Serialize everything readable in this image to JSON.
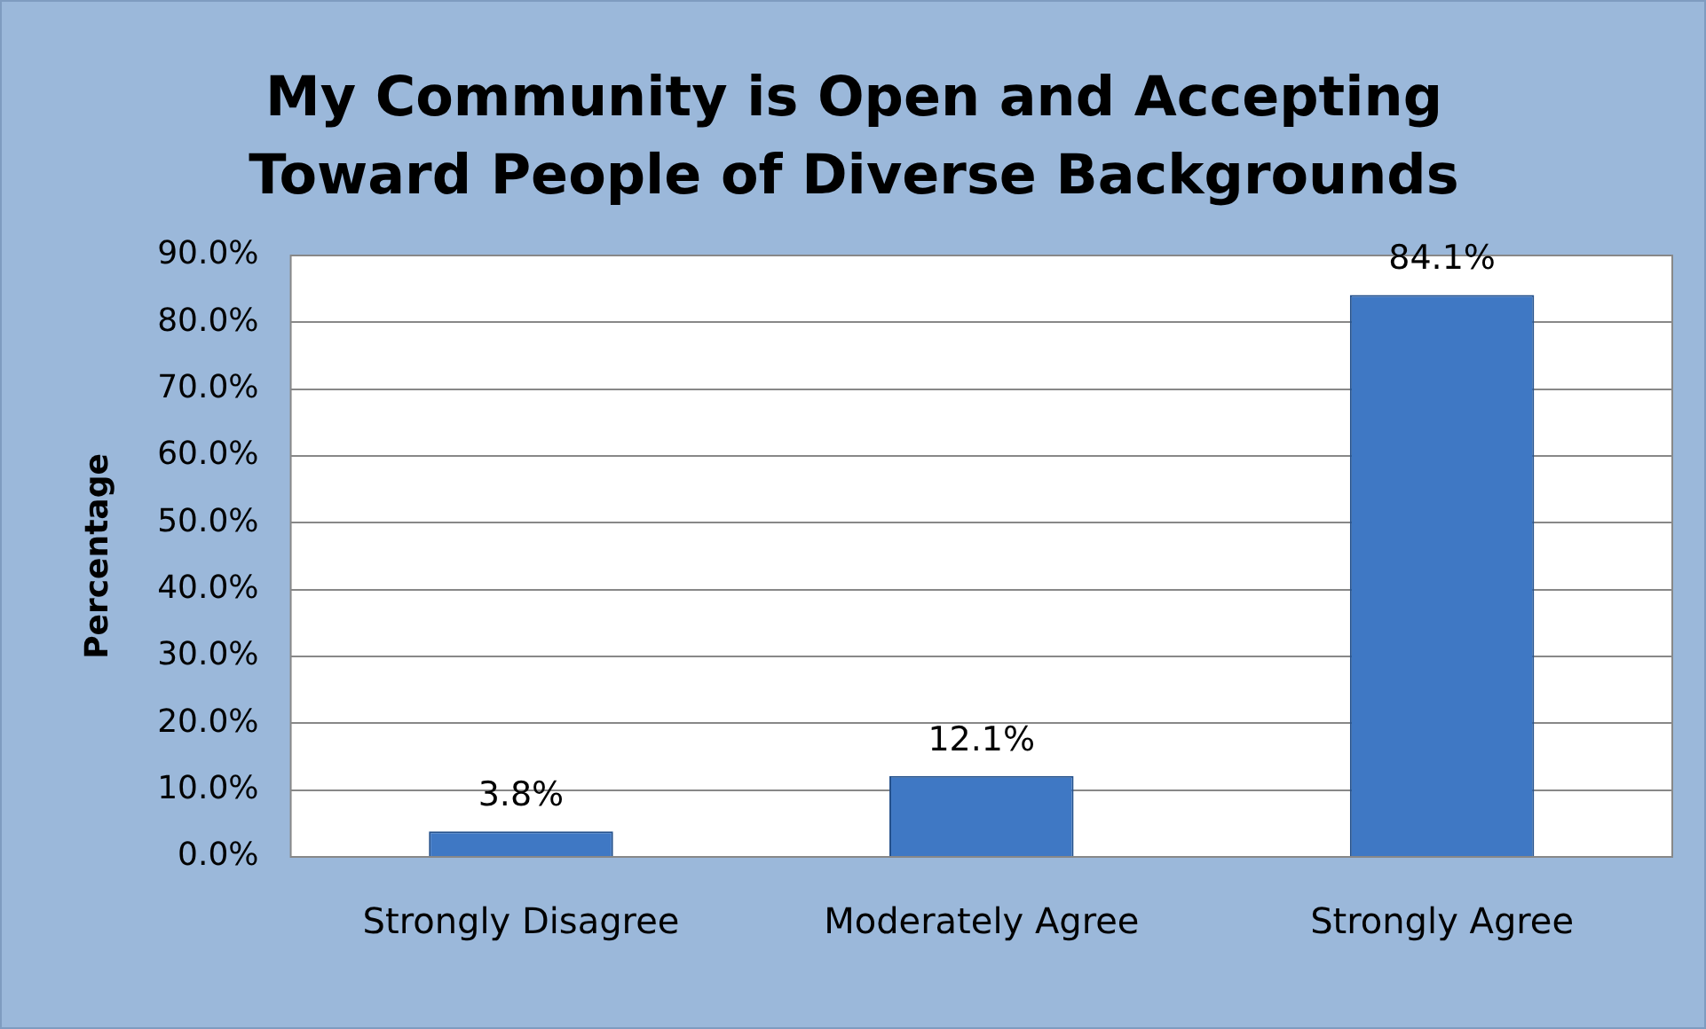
{
  "chart_data": {
    "type": "bar",
    "title": "My Community is Open and Accepting Toward People of Diverse Backgrounds",
    "ylabel": "Percentage",
    "categories": [
      "Strongly Disagree",
      "Moderately Agree",
      "Strongly Agree"
    ],
    "values": [
      3.8,
      12.1,
      84.1
    ],
    "value_labels": [
      "3.8%",
      "12.1%",
      "84.1%"
    ],
    "color": "#3f78c4",
    "ylim": [
      0,
      90
    ],
    "yticks": [
      {
        "value": 0,
        "label": "0.0%"
      },
      {
        "value": 10,
        "label": "10.0%"
      },
      {
        "value": 20,
        "label": "20.0%"
      },
      {
        "value": 30,
        "label": "30.0%"
      },
      {
        "value": 40,
        "label": "40.0%"
      },
      {
        "value": 50,
        "label": "50.0%"
      },
      {
        "value": 60,
        "label": "60.0%"
      },
      {
        "value": 70,
        "label": "70.0%"
      },
      {
        "value": 80,
        "label": "80.0%"
      },
      {
        "value": 90,
        "label": "90.0%"
      }
    ],
    "grid": "y",
    "legend": false
  }
}
